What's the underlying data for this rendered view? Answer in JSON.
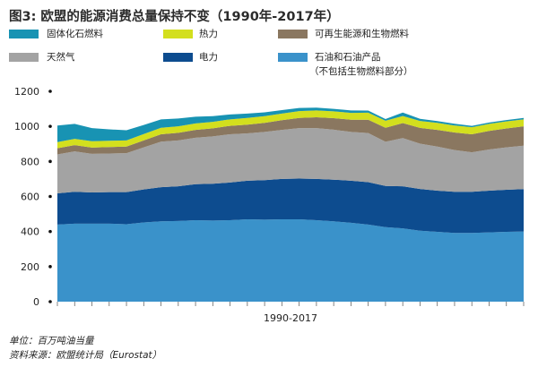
{
  "title": "图3: 欧盟的能源消费总量保持不变（1990年-2017年）",
  "legend": {
    "items": [
      {
        "label": "固体化石燃料",
        "color": "#1893b3"
      },
      {
        "label": "热力",
        "color": "#d3df1e"
      },
      {
        "label": "可再生能源和生物燃料",
        "color": "#8a7760"
      },
      {
        "label": "天然气",
        "color": "#a3a3a3"
      },
      {
        "label": "电力",
        "color": "#0d4c8f"
      },
      {
        "label": "石油和石油产品",
        "color": "#3a92ca"
      }
    ],
    "oil_note": "（不包括生物燃料部分）"
  },
  "footer": {
    "unit": "单位：百万吨油当量",
    "source": "资料来源：欧盟统计局（Eurostat）"
  },
  "chart_data": {
    "type": "area",
    "stacked": true,
    "title": "图3: 欧盟的能源消费总量保持不变（1990年-2017年）",
    "xlabel": "1990-2017",
    "ylabel": "",
    "unit": "单位：百万吨油当量",
    "ylim": [
      0,
      1200
    ],
    "yticks": [
      0,
      200,
      400,
      600,
      800,
      1000,
      1200
    ],
    "grid": false,
    "legend_position": "top",
    "x": [
      1990,
      1991,
      1992,
      1993,
      1994,
      1995,
      1996,
      1997,
      1998,
      1999,
      2000,
      2001,
      2002,
      2003,
      2004,
      2005,
      2006,
      2007,
      2008,
      2009,
      2010,
      2011,
      2012,
      2013,
      2014,
      2015,
      2016,
      2017
    ],
    "series": [
      {
        "name": "石油和石油产品",
        "color": "#3a92ca",
        "values": [
          440,
          445,
          445,
          445,
          442,
          452,
          458,
          460,
          465,
          463,
          465,
          470,
          468,
          470,
          470,
          465,
          458,
          450,
          440,
          425,
          418,
          405,
          398,
          392,
          392,
          395,
          398,
          400
        ]
      },
      {
        "name": "电力",
        "color": "#0d4c8f",
        "values": [
          178,
          182,
          178,
          180,
          183,
          188,
          195,
          198,
          205,
          210,
          215,
          220,
          225,
          230,
          232,
          235,
          238,
          240,
          242,
          235,
          240,
          238,
          235,
          235,
          235,
          238,
          240,
          242
        ]
      },
      {
        "name": "天然气",
        "color": "#a3a3a3",
        "values": [
          222,
          230,
          220,
          220,
          222,
          240,
          260,
          262,
          265,
          270,
          275,
          270,
          275,
          280,
          288,
          290,
          285,
          278,
          280,
          252,
          275,
          258,
          252,
          238,
          225,
          235,
          242,
          248
        ]
      },
      {
        "name": "可再生能源和生物燃料",
        "color": "#8a7760",
        "values": [
          35,
          36,
          36,
          37,
          38,
          40,
          42,
          43,
          45,
          46,
          48,
          50,
          52,
          55,
          58,
          62,
          66,
          70,
          76,
          80,
          86,
          90,
          95,
          100,
          103,
          106,
          108,
          110
        ]
      },
      {
        "name": "热力",
        "color": "#d3df1e",
        "values": [
          35,
          36,
          36,
          36,
          35,
          36,
          37,
          37,
          37,
          37,
          37,
          38,
          38,
          38,
          39,
          39,
          39,
          39,
          40,
          40,
          40,
          40,
          40,
          40,
          40,
          40,
          40,
          40
        ]
      },
      {
        "name": "固体化石燃料",
        "color": "#1893b3",
        "values": [
          95,
          85,
          75,
          65,
          58,
          52,
          48,
          45,
          38,
          32,
          28,
          25,
          22,
          20,
          18,
          16,
          14,
          14,
          12,
          10,
          20,
          12,
          10,
          10,
          8,
          8,
          8,
          8
        ]
      }
    ]
  }
}
